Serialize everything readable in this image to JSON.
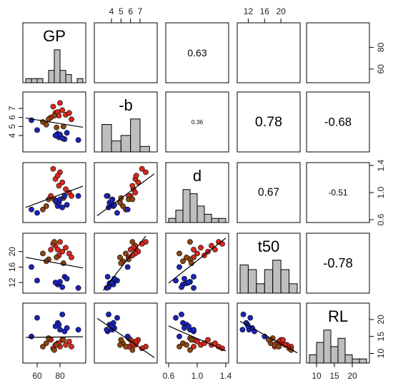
{
  "chart_data": {
    "type": "scatter-matrix",
    "variables": [
      {
        "name": "GP",
        "range": [
          50,
          100
        ]
      },
      {
        "name": "-b",
        "range": [
          2.5,
          8.5
        ]
      },
      {
        "name": "d",
        "range": [
          0.6,
          1.4
        ]
      },
      {
        "name": "t50",
        "range": [
          10,
          24
        ]
      },
      {
        "name": "RL",
        "range": [
          8,
          24
        ]
      }
    ],
    "top_axes": [
      {
        "column": 1,
        "ticks": [
          "4",
          "5",
          "6",
          "7"
        ]
      },
      {
        "column": 3,
        "ticks": [
          "12",
          "16",
          "20"
        ]
      }
    ],
    "bottom_axes": [
      {
        "column": 0,
        "ticks": [
          "60",
          "80"
        ]
      },
      {
        "column": 2,
        "ticks": [
          "0.6",
          "1.0",
          "1.4"
        ]
      },
      {
        "column": 4,
        "ticks": [
          "10",
          "15",
          "20"
        ]
      }
    ],
    "left_axes": [
      {
        "row": 1,
        "ticks": [
          "4",
          "5",
          "6",
          "7"
        ]
      },
      {
        "row": 3,
        "ticks": [
          "12",
          "16",
          "20"
        ]
      }
    ],
    "right_axes": [
      {
        "row": 0,
        "ticks": [
          "60",
          "80"
        ]
      },
      {
        "row": 2,
        "ticks": [
          "0.6",
          "1.0",
          "1.4"
        ]
      },
      {
        "row": 4,
        "ticks": [
          "10",
          "15",
          "20"
        ]
      }
    ],
    "correlations": [
      {
        "row": 0,
        "col": 2,
        "text": "0.63",
        "size": 1.0
      },
      {
        "row": 1,
        "col": 2,
        "text": "0.36",
        "size": 0.6
      },
      {
        "row": 1,
        "col": 3,
        "text": "0.78",
        "size": 1.4
      },
      {
        "row": 1,
        "col": 4,
        "text": "-0.68",
        "size": 1.2
      },
      {
        "row": 2,
        "col": 3,
        "text": "0.67",
        "size": 1.1
      },
      {
        "row": 2,
        "col": 4,
        "text": "-0.51",
        "size": 0.85
      },
      {
        "row": 3,
        "col": 4,
        "text": "-0.78",
        "size": 1.3
      }
    ],
    "histograms": [
      {
        "var": 0,
        "edges": [
          50,
          55,
          60,
          65,
          70,
          75,
          80,
          85,
          90,
          95,
          100
        ],
        "counts": [
          1,
          1,
          1,
          0,
          3,
          8,
          3,
          2,
          0,
          1
        ]
      },
      {
        "var": 1,
        "edges": [
          3,
          4,
          5,
          6,
          7,
          8
        ],
        "counts": [
          5,
          2,
          3,
          6,
          1
        ]
      },
      {
        "var": 2,
        "edges": [
          0.6,
          0.7,
          0.8,
          0.9,
          1.0,
          1.1,
          1.2,
          1.3,
          1.4
        ],
        "counts": [
          1,
          3,
          8,
          7,
          4,
          2,
          1,
          1
        ]
      },
      {
        "var": 3,
        "edges": [
          10,
          12,
          14,
          16,
          18,
          20,
          22,
          24
        ],
        "counts": [
          6,
          5,
          2,
          5,
          7,
          5,
          2
        ]
      },
      {
        "var": 4,
        "edges": [
          8,
          10,
          12,
          14,
          16,
          18,
          20,
          22,
          24
        ],
        "counts": [
          2,
          5,
          8,
          4,
          6,
          2,
          1,
          1
        ]
      }
    ],
    "groups": [
      {
        "name": "red",
        "color": "#d42a1e"
      },
      {
        "name": "brown",
        "color": "#8b4513"
      },
      {
        "name": "blue",
        "color": "#1c24b5"
      }
    ],
    "observations": [
      {
        "GP": 80,
        "-b": 7.6,
        "d": 1.3,
        "t50": 22.5,
        "RL": 12.0,
        "group": "red"
      },
      {
        "GP": 76,
        "-b": 6.5,
        "d": 1.2,
        "t50": 21.5,
        "RL": 12.5,
        "group": "red"
      },
      {
        "GP": 78,
        "-b": 6.6,
        "d": 1.25,
        "t50": 20.5,
        "RL": 13.0,
        "group": "red"
      },
      {
        "GP": 82,
        "-b": 6.8,
        "d": 1.15,
        "t50": 20.0,
        "RL": 14.0,
        "group": "red"
      },
      {
        "GP": 85,
        "-b": 6.3,
        "d": 1.05,
        "t50": 21.0,
        "RL": 12.5,
        "group": "red"
      },
      {
        "GP": 88,
        "-b": 6.5,
        "d": 1.0,
        "t50": 19.5,
        "RL": 13.5,
        "group": "red"
      },
      {
        "GP": 74,
        "-b": 7.2,
        "d": 1.35,
        "t50": 22.0,
        "RL": 11.5,
        "group": "red"
      },
      {
        "GP": 79,
        "-b": 6.2,
        "d": 1.1,
        "t50": 19.0,
        "RL": 13.0,
        "group": "red"
      },
      {
        "GP": 72,
        "-b": 6.0,
        "d": 0.95,
        "t50": 20.5,
        "RL": 14.0,
        "group": "red"
      },
      {
        "GP": 90,
        "-b": 5.8,
        "d": 0.95,
        "t50": 18.5,
        "RL": 12.0,
        "group": "red"
      },
      {
        "GP": 70,
        "-b": 5.8,
        "d": 0.9,
        "t50": 18.0,
        "RL": 14.5,
        "group": "brown"
      },
      {
        "GP": 68,
        "-b": 5.2,
        "d": 0.8,
        "t50": 17.5,
        "RL": 13.0,
        "group": "brown"
      },
      {
        "GP": 77,
        "-b": 4.9,
        "d": 0.85,
        "t50": 18.5,
        "RL": 12.5,
        "group": "brown"
      },
      {
        "GP": 65,
        "-b": 5.5,
        "d": 0.75,
        "t50": 19.5,
        "RL": 12.0,
        "group": "brown"
      },
      {
        "GP": 75,
        "-b": 6.2,
        "d": 0.9,
        "t50": 22.5,
        "RL": 11.0,
        "group": "brown"
      },
      {
        "GP": 83,
        "-b": 5.0,
        "d": 0.92,
        "t50": 17.0,
        "RL": 14.0,
        "group": "brown"
      },
      {
        "GP": 60,
        "-b": 4.6,
        "d": 0.7,
        "t50": 12.5,
        "RL": 20.5,
        "group": "blue"
      },
      {
        "GP": 78,
        "-b": 4.2,
        "d": 0.8,
        "t50": 11.5,
        "RL": 19.0,
        "group": "blue"
      },
      {
        "GP": 79,
        "-b": 3.8,
        "d": 0.85,
        "t50": 11.8,
        "RL": 18.5,
        "group": "blue"
      },
      {
        "GP": 80,
        "-b": 4.1,
        "d": 0.9,
        "t50": 12.2,
        "RL": 17.0,
        "group": "blue"
      },
      {
        "GP": 84,
        "-b": 3.6,
        "d": 0.95,
        "t50": 13.5,
        "RL": 16.5,
        "group": "blue"
      },
      {
        "GP": 86,
        "-b": 4.3,
        "d": 0.82,
        "t50": 13.0,
        "RL": 17.5,
        "group": "blue"
      },
      {
        "GP": 82,
        "-b": 3.7,
        "d": 0.78,
        "t50": 10.8,
        "RL": 21.5,
        "group": "blue"
      },
      {
        "GP": 76,
        "-b": 4.0,
        "d": 0.88,
        "t50": 12.0,
        "RL": 18.0,
        "group": "blue"
      },
      {
        "GP": 55,
        "-b": 5.7,
        "d": 0.75,
        "t50": 16.0,
        "RL": 15.0,
        "group": "blue"
      },
      {
        "GP": 96,
        "-b": 3.5,
        "d": 0.95,
        "t50": 10.6,
        "RL": 17.0,
        "group": "blue"
      }
    ]
  }
}
